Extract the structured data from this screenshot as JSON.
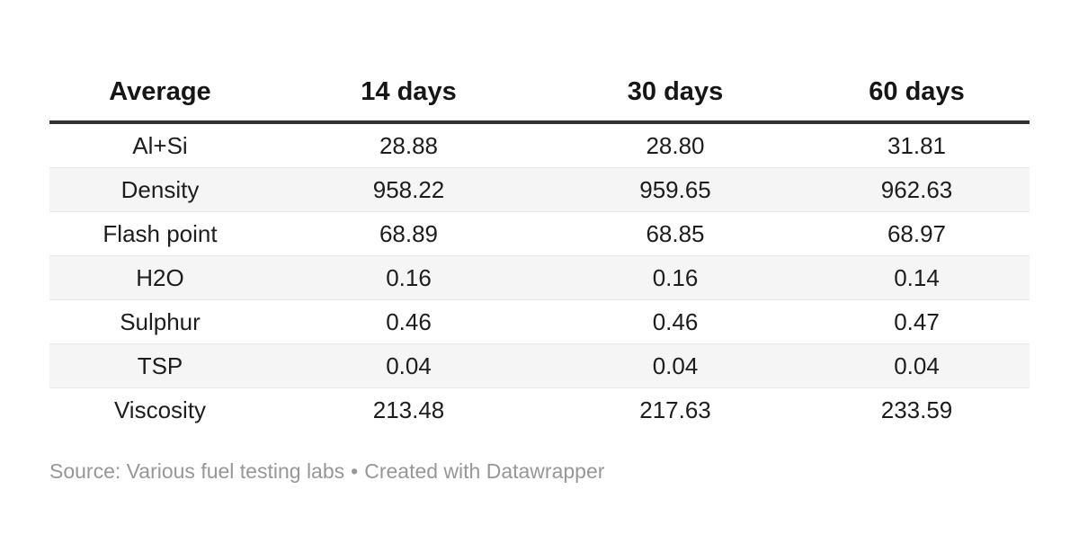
{
  "chart_data": {
    "type": "table",
    "columns": [
      "Average",
      "14 days",
      "30 days",
      "60 days"
    ],
    "rows": [
      {
        "label": "Al+Si",
        "values": [
          "28.88",
          "28.80",
          "31.81"
        ]
      },
      {
        "label": "Density",
        "values": [
          "958.22",
          "959.65",
          "962.63"
        ]
      },
      {
        "label": "Flash point",
        "values": [
          "68.89",
          "68.85",
          "68.97"
        ]
      },
      {
        "label": "H2O",
        "values": [
          "0.16",
          "0.16",
          "0.14"
        ]
      },
      {
        "label": "Sulphur",
        "values": [
          "0.46",
          "0.46",
          "0.47"
        ]
      },
      {
        "label": "TSP",
        "values": [
          "0.04",
          "0.04",
          "0.04"
        ]
      },
      {
        "label": "Viscosity",
        "values": [
          "213.48",
          "217.63",
          "233.59"
        ]
      }
    ],
    "title": "",
    "layout_hints": {
      "zebra_striping": true,
      "first_row_striped": false,
      "alignment": "center",
      "header_rule": true
    }
  },
  "footer": {
    "source": "Source: Various fuel testing labs",
    "separator": "•",
    "attribution": "Created with Datawrapper"
  },
  "colors": {
    "background": "#ffffff",
    "header_text": "#161616",
    "body_text": "#1d1d1d",
    "header_rule": "#313131",
    "row_stripe": "#f5f5f5",
    "row_border": "#e9e9e9",
    "footer_text": "#979797"
  }
}
